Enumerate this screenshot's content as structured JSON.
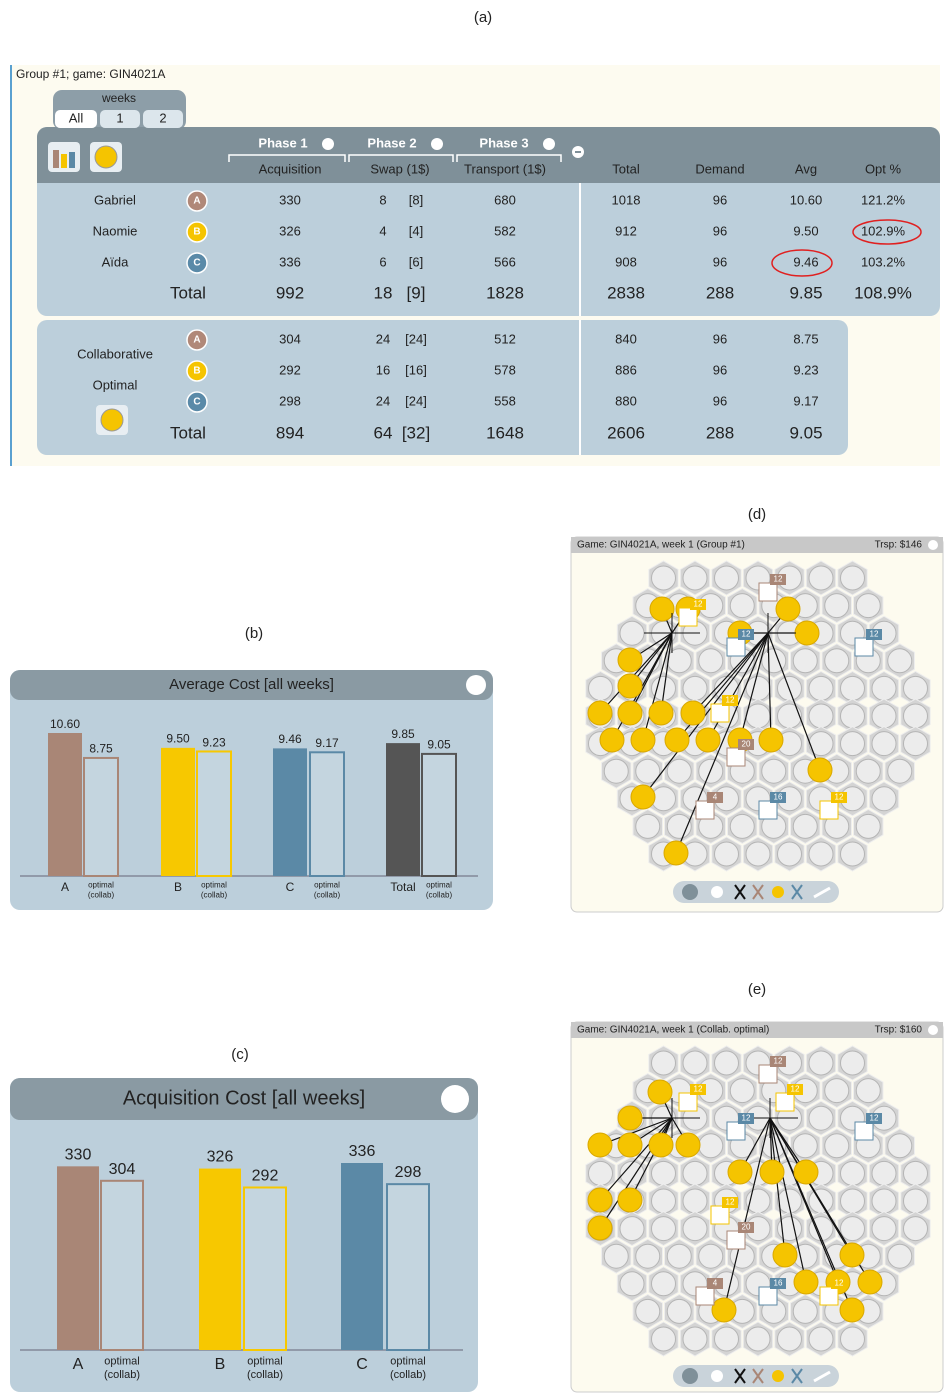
{
  "panel_labels": [
    "(a)",
    "(b)",
    "(c)",
    "(d)",
    "(e)"
  ],
  "table": {
    "group": "Group #1; game: GIN4021A",
    "weeks_label": "weeks",
    "week_tabs": [
      "All",
      "1",
      "2"
    ],
    "phases": [
      "Phase 1",
      "Phase 2",
      "Phase 3"
    ],
    "columns": [
      "Acquisition",
      "Swap (1$)",
      "Transport (1$)",
      "Total",
      "Demand",
      "Avg",
      "Opt %"
    ],
    "badge_colors": [
      "#b08878",
      "#f5c400",
      "#5a8aa8"
    ],
    "rows": [
      {
        "name": "Gabriel",
        "badge": "A",
        "cells": [
          "330",
          "8",
          "[8]",
          "680",
          "1018",
          "96",
          "10.60",
          "121.2%"
        ]
      },
      {
        "name": "Naomie",
        "badge": "B",
        "cells": [
          "326",
          "4",
          "[4]",
          "582",
          "912",
          "96",
          "9.50",
          "102.9%"
        ]
      },
      {
        "name": "Aïda",
        "badge": "C",
        "cells": [
          "336",
          "6",
          "[6]",
          "566",
          "908",
          "96",
          "9.46",
          "103.2%"
        ]
      }
    ],
    "total": {
      "label": "Total",
      "cells": [
        "992",
        "18",
        "[9]",
        "1828",
        "2838",
        "288",
        "9.85",
        "108.9%"
      ]
    },
    "optimal": {
      "label": [
        "Collaborative",
        "Optimal"
      ],
      "rows": [
        {
          "badge": "A",
          "cells": [
            "304",
            "24",
            "[24]",
            "512",
            "840",
            "96",
            "8.75"
          ]
        },
        {
          "badge": "B",
          "cells": [
            "292",
            "16",
            "[16]",
            "578",
            "886",
            "96",
            "9.23"
          ]
        },
        {
          "badge": "C",
          "cells": [
            "298",
            "24",
            "[24]",
            "558",
            "880",
            "96",
            "9.17"
          ]
        }
      ],
      "total": {
        "label": "Total",
        "cells": [
          "894",
          "64",
          "[32]",
          "1648",
          "2606",
          "288",
          "9.05"
        ]
      }
    }
  },
  "chart_data": [
    {
      "type": "bar",
      "title": "Average Cost [all weeks]",
      "categories": [
        "A",
        "B",
        "C",
        "Total"
      ],
      "colors": [
        "#a98676",
        "#f7c800",
        "#5b89a6",
        "#555555"
      ],
      "values": [
        10.6,
        9.5,
        9.46,
        9.85
      ],
      "value_labels": [
        "10.60",
        "9.50",
        "9.46",
        "9.85"
      ],
      "optimal_values": [
        8.75,
        9.23,
        9.17,
        9.05
      ],
      "optimal_label": "optimal",
      "optimal_sublabel": "(collab)"
    },
    {
      "type": "bar",
      "title": "Acquisition Cost [all weeks]",
      "categories": [
        "A",
        "B",
        "C"
      ],
      "colors": [
        "#a98676",
        "#f7c800",
        "#5b89a6"
      ],
      "values": [
        330,
        326,
        336
      ],
      "optimal_values": [
        304,
        292,
        298
      ],
      "optimal_label": "optimal",
      "optimal_sublabel": "(collab)"
    }
  ],
  "maps": [
    {
      "title": "Game: GIN4021A, week 1 (Group #1)",
      "transport": "Trsp: $146",
      "factories": [
        {
          "label": "12",
          "color": "#a98676"
        },
        {
          "label": "12",
          "color": "#f5c400"
        },
        {
          "label": "12",
          "color": "#5b89a6"
        },
        {
          "label": "12",
          "color": "#5b89a6"
        },
        {
          "label": "12",
          "color": "#f5c400"
        },
        {
          "label": "20",
          "color": "#a98676"
        },
        {
          "label": "4",
          "color": "#a98676"
        },
        {
          "label": "16",
          "color": "#5b89a6"
        },
        {
          "label": "12",
          "color": "#f5c400"
        }
      ]
    },
    {
      "title": "Game: GIN4021A, week 1 (Collab. optimal)",
      "transport": "Trsp: $160",
      "factories": [
        {
          "label": "12",
          "color": "#a98676"
        },
        {
          "label": "12",
          "color": "#f5c400"
        },
        {
          "label": "12",
          "color": "#f5c400"
        },
        {
          "label": "12",
          "color": "#5b89a6"
        },
        {
          "label": "12",
          "color": "#5b89a6"
        },
        {
          "label": "12",
          "color": "#f5c400"
        },
        {
          "label": "20",
          "color": "#a98676"
        },
        {
          "label": "4",
          "color": "#a98676"
        },
        {
          "label": "16",
          "color": "#5b89a6"
        },
        {
          "label": "12",
          "color": "#f5c400"
        }
      ]
    }
  ]
}
